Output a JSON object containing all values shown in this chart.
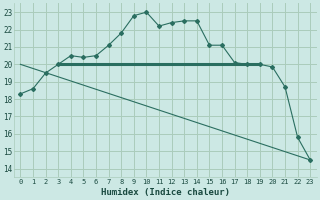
{
  "xlabel": "Humidex (Indice chaleur)",
  "bg_color": "#cce8e4",
  "grid_color": "#aaccbb",
  "line_color": "#2a6e60",
  "xlim": [
    -0.5,
    23.5
  ],
  "ylim": [
    13.5,
    23.5
  ],
  "xticks": [
    0,
    1,
    2,
    3,
    4,
    5,
    6,
    7,
    8,
    9,
    10,
    11,
    12,
    13,
    14,
    15,
    16,
    17,
    18,
    19,
    20,
    21,
    22,
    23
  ],
  "yticks": [
    14,
    15,
    16,
    17,
    18,
    19,
    20,
    21,
    22,
    23
  ],
  "curve1_x": [
    0,
    1,
    2,
    3,
    4,
    5,
    6,
    7,
    8,
    9,
    10,
    11,
    12,
    13,
    14,
    15,
    16,
    17,
    18,
    19,
    20,
    21,
    22,
    23
  ],
  "curve1_y": [
    18.3,
    18.6,
    19.5,
    20.0,
    20.5,
    20.4,
    20.5,
    21.1,
    21.8,
    22.8,
    23.0,
    22.2,
    22.4,
    22.5,
    22.5,
    21.1,
    21.1,
    20.1,
    20.0,
    20.0,
    19.85,
    18.7,
    15.8,
    14.5
  ],
  "curve2_x": [
    0,
    23
  ],
  "curve2_y": [
    20.0,
    14.5
  ],
  "hline_x": [
    3,
    19
  ],
  "hline_y": [
    20.0,
    20.0
  ]
}
